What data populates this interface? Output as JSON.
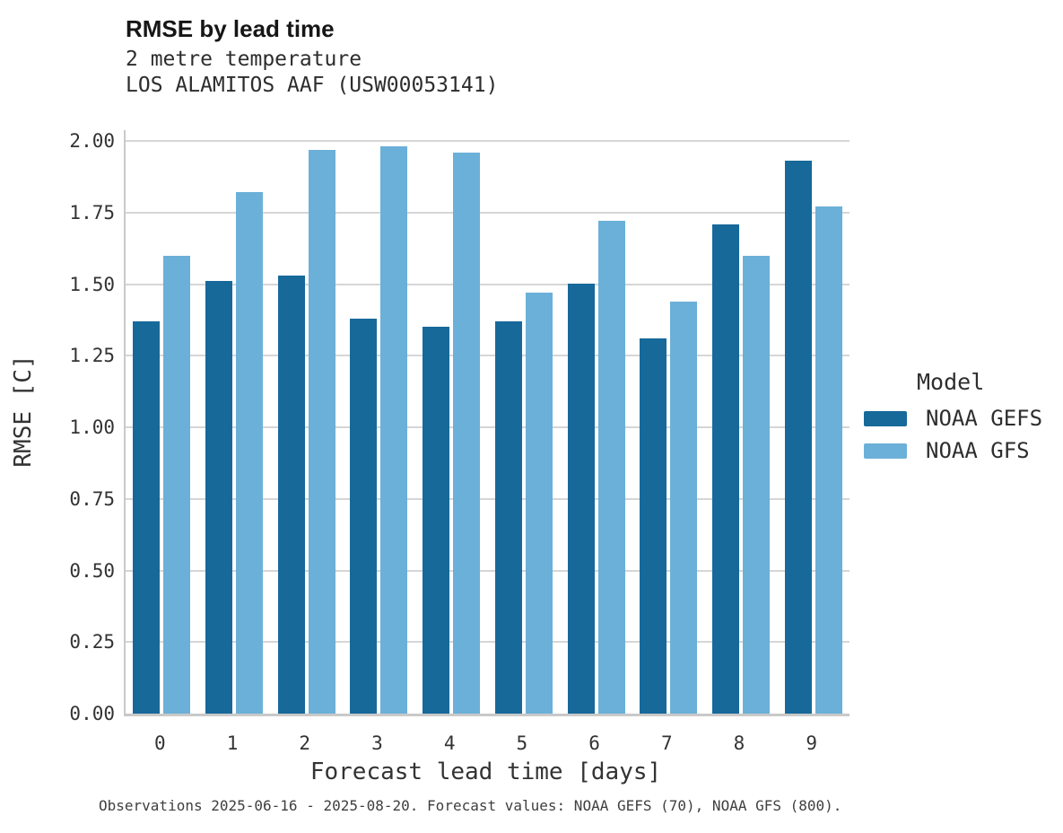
{
  "header": {
    "title": "RMSE by lead time",
    "subtitle": "2 metre temperature",
    "station": "LOS ALAMITOS AAF (USW00053141)"
  },
  "chart_data": {
    "type": "bar",
    "title": "RMSE by lead time",
    "subtitle": "2 metre temperature",
    "station": "LOS ALAMITOS AAF (USW00053141)",
    "xlabel": "Forecast lead time [days]",
    "ylabel": "RMSE [C]",
    "categories": [
      "0",
      "1",
      "2",
      "3",
      "4",
      "5",
      "6",
      "7",
      "8",
      "9"
    ],
    "series": [
      {
        "name": "NOAA GEFS",
        "color": "#17699a",
        "values": [
          1.37,
          1.51,
          1.53,
          1.38,
          1.35,
          1.37,
          1.5,
          1.31,
          1.71,
          1.93
        ]
      },
      {
        "name": "NOAA GFS",
        "color": "#6bb0d8",
        "values": [
          1.6,
          1.82,
          1.97,
          1.98,
          1.96,
          1.47,
          1.72,
          1.44,
          1.6,
          1.77
        ]
      }
    ],
    "ylim": [
      0,
      2.04
    ],
    "yticks": [
      0,
      0.25,
      0.5,
      0.75,
      1.0,
      1.25,
      1.5,
      1.75,
      2.0
    ],
    "ytick_labels": [
      "0.00",
      "0.25",
      "0.50",
      "0.75",
      "1.00",
      "1.25",
      "1.50",
      "1.75",
      "2.00"
    ],
    "grid": true,
    "legend_title": "Model",
    "legend_position": "right"
  },
  "legend": {
    "title": "Model"
  },
  "footer": {
    "caption": "Observations 2025-06-16 - 2025-08-20. Forecast values: NOAA GEFS (70), NOAA GFS (800)."
  },
  "colors": {
    "gefs_bar": "#17699a",
    "gfs_bar": "#6bb0d8",
    "gridline": "#d6d6d6",
    "spine": "#c9c9c9",
    "text": "#333333"
  }
}
